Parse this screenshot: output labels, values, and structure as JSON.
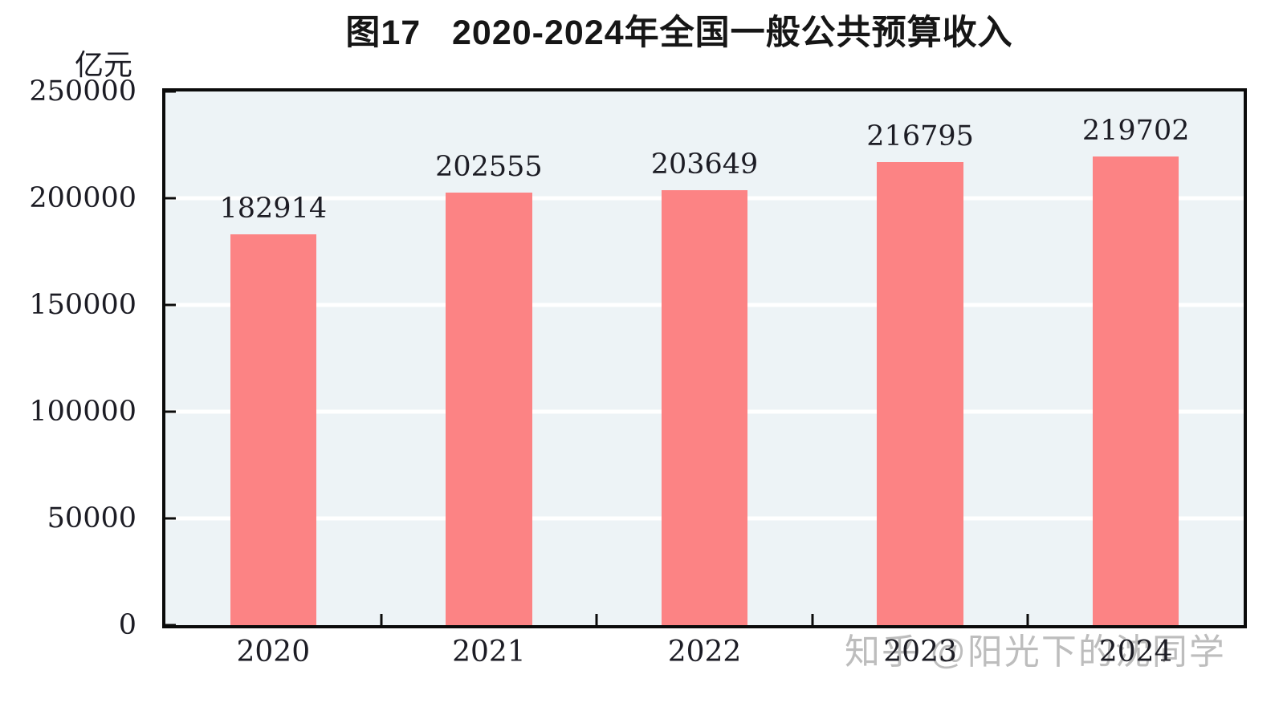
{
  "chart_data": {
    "type": "bar",
    "title": "图17   2020-2024年全国一般公共预算收入",
    "unit_label": "亿元",
    "categories": [
      "2020",
      "2021",
      "2022",
      "2023",
      "2024"
    ],
    "values": [
      182914,
      202555,
      203649,
      216795,
      219702
    ],
    "xlabel": "",
    "ylabel": "亿元",
    "ylim": [
      0,
      250000
    ],
    "yticks": [
      0,
      50000,
      100000,
      150000,
      200000,
      250000
    ],
    "gridline_ticks": [
      50000,
      100000,
      150000,
      200000
    ],
    "data_labels": [
      182914,
      202555,
      203649,
      216795,
      219702
    ],
    "legend": "none",
    "grid": "horizontal-white",
    "bar_color": "#fc8384",
    "plot_bg_color": "#edf3f6",
    "axis_border_color": "#0b0b0b",
    "bar_width_fraction": 0.4
  },
  "watermark": {
    "text": "知乎 @阳光下的沈同学",
    "color": "#bdbdbd"
  }
}
